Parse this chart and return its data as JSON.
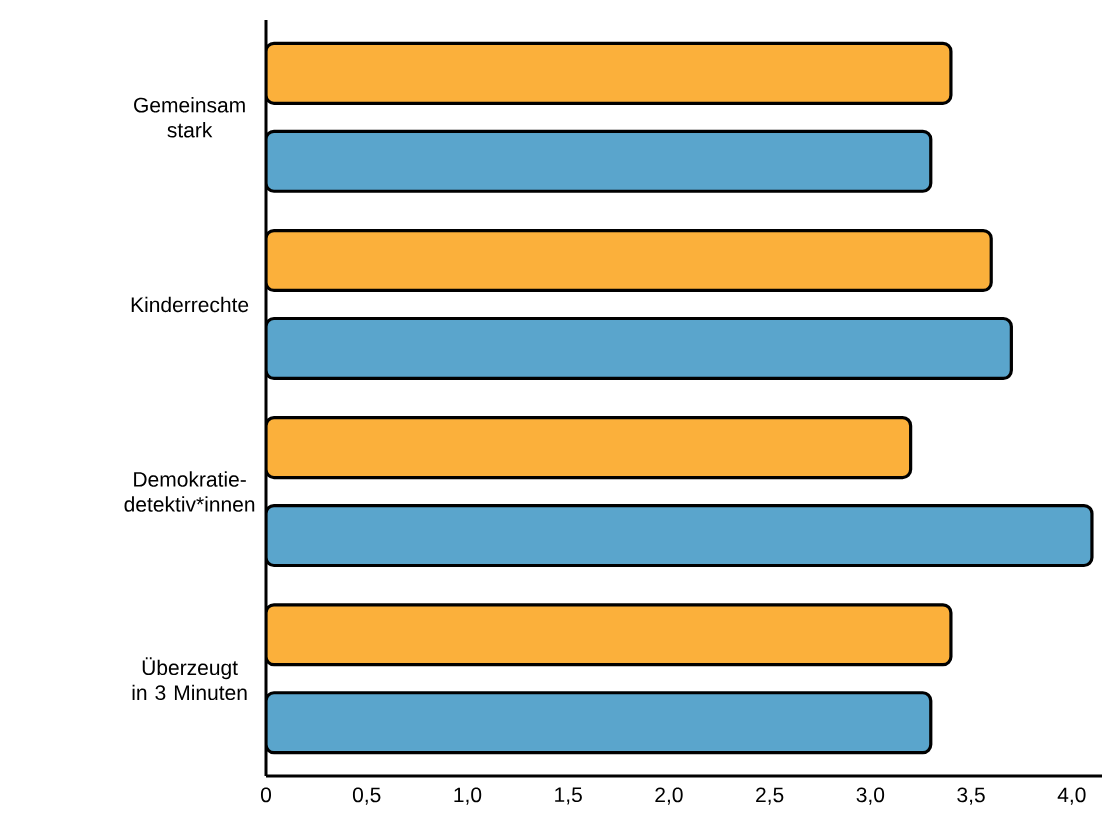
{
  "chart_data": {
    "type": "bar",
    "orientation": "horizontal",
    "categories": [
      "Gemeinsam stark",
      "Kinderrechte",
      "Demokratie-detektiv*innen",
      "Überzeugt in 3 Minuten"
    ],
    "series": [
      {
        "color": "#fbb03b",
        "values": [
          3.4,
          3.6,
          3.2,
          3.4
        ]
      },
      {
        "color": "#5aa5cc",
        "values": [
          3.3,
          3.7,
          4.1,
          3.3
        ]
      }
    ],
    "xlim": [
      0,
      4.15
    ],
    "xticks": [
      0,
      {
        "value": 0.5,
        "label": "0,5"
      },
      {
        "value": 1.0,
        "label": "1,0"
      },
      {
        "value": 1.5,
        "label": "1,5"
      },
      {
        "value": 2.0,
        "label": "2,0"
      },
      {
        "value": 2.5,
        "label": "2,5"
      },
      {
        "value": 3.0,
        "label": "3,0"
      },
      {
        "value": 3.5,
        "label": "3,5"
      },
      {
        "value": 4.0,
        "label": "4,0"
      }
    ]
  }
}
